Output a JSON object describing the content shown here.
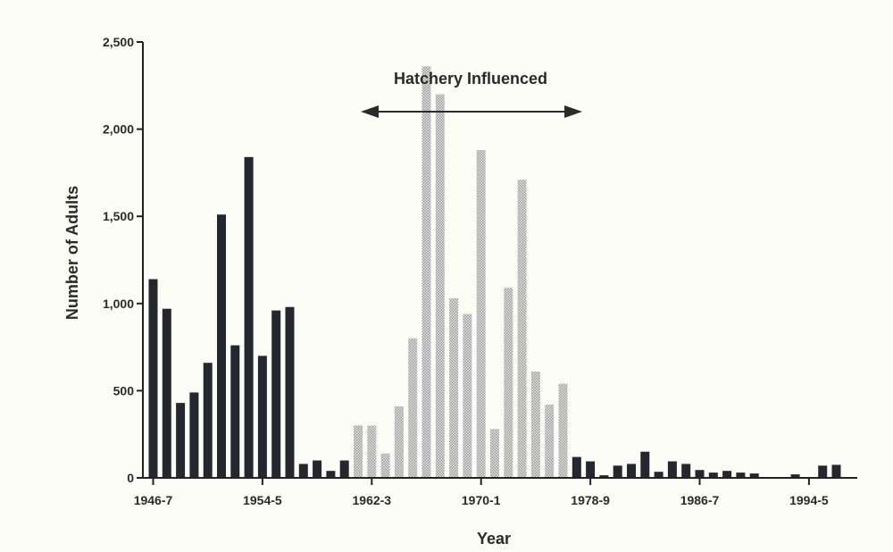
{
  "chart_data": {
    "type": "bar",
    "annotation": "Hatchery Influenced",
    "xlabel": "Year",
    "ylabel": "Number of Adults",
    "ylim": [
      0,
      2500
    ],
    "yticks": [
      0,
      500,
      1000,
      1500,
      2000,
      2500
    ],
    "ytick_labels": [
      "0",
      "500",
      "1,000",
      "1,500",
      "2,000",
      "2,500"
    ],
    "xtick_labels": [
      "1946-7",
      "1954-5",
      "1962-3",
      "1970-1",
      "1978-9",
      "1986-7",
      "1994-5"
    ],
    "grid": false,
    "colors": {
      "wild": "#26262e",
      "hatchery": "#b4b4b4"
    },
    "series": [
      {
        "name": "",
        "values": [
          1140,
          970,
          430,
          490,
          660,
          1510,
          760,
          1840,
          700,
          960,
          980,
          80,
          100,
          40,
          100,
          300,
          300,
          140,
          410,
          800,
          2360,
          2200,
          1030,
          940,
          1880,
          280,
          1090,
          1710,
          610,
          420,
          540,
          120,
          95,
          15,
          70,
          80,
          150,
          35,
          95,
          80,
          45,
          30,
          40,
          30,
          25,
          5,
          0,
          20,
          0,
          70,
          75
        ],
        "hatchery_start_index": 15,
        "hatchery_end_index": 30
      }
    ]
  }
}
